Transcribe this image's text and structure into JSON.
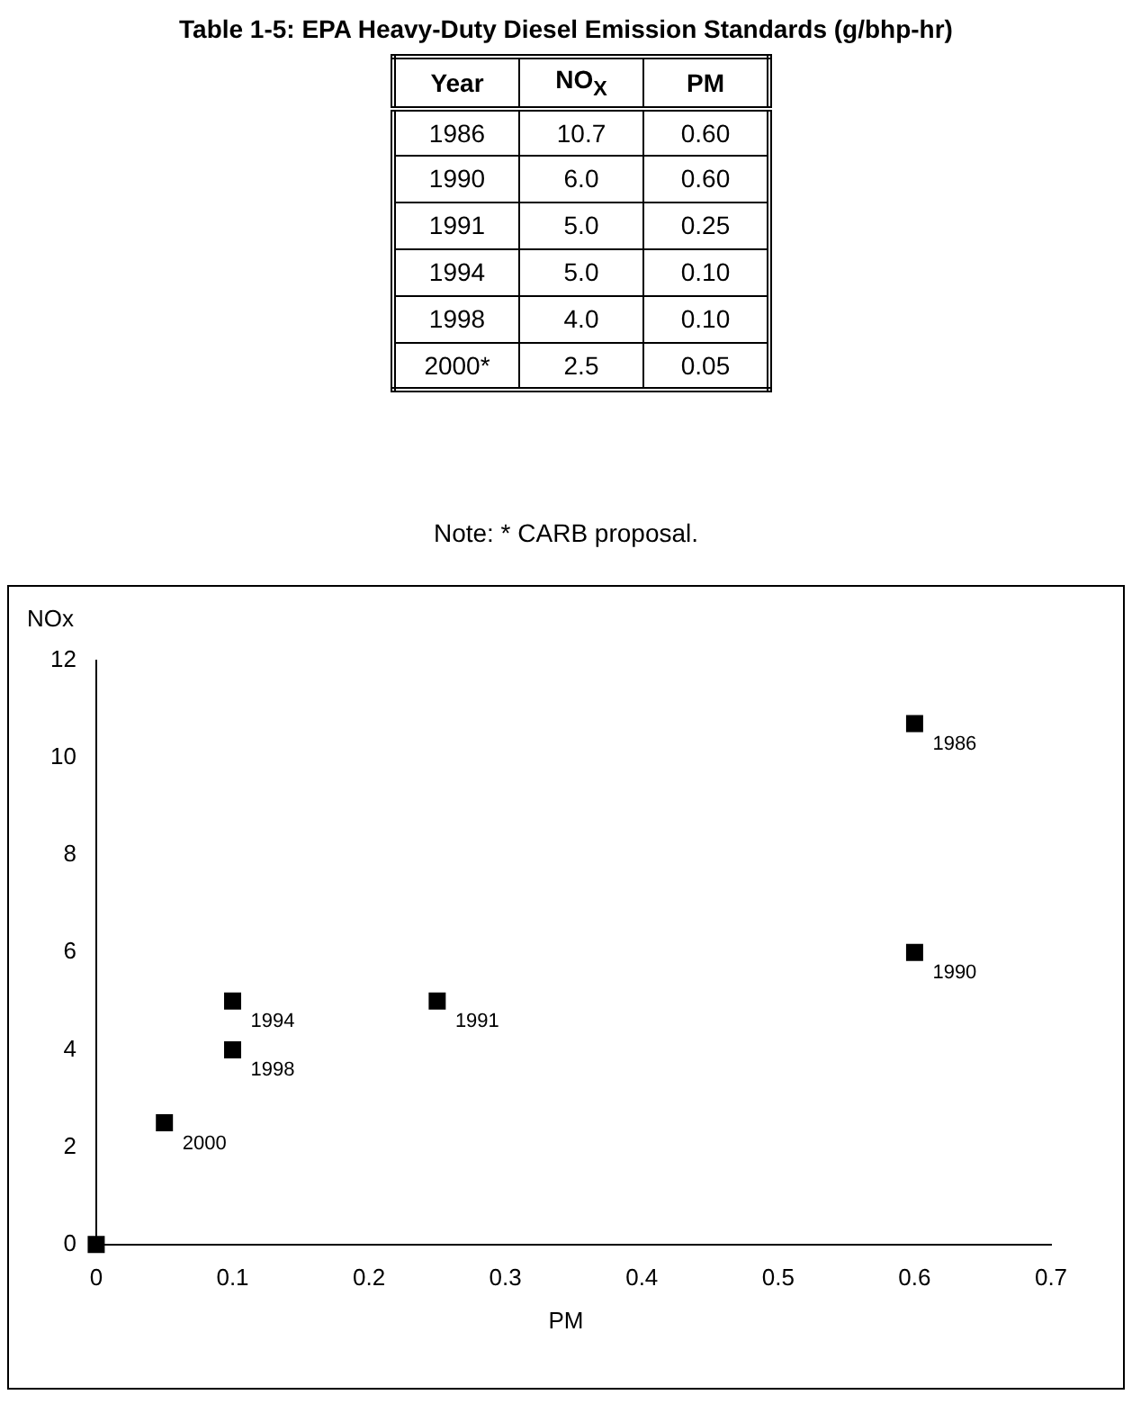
{
  "chart_data": {
    "type": "scatter",
    "title": "Table 1-5:  EPA Heavy-Duty Diesel Emission Standards (g/bhp-hr)",
    "xlabel": "PM",
    "ylabel": "NOx",
    "annotations": [
      "Year",
      "NO$_{X}$",
      "PM",
      "1986",
      "10.7",
      "0.60",
      "1990",
      "6.0",
      "0.60",
      "1991",
      "5.0",
      "0.25",
      "1994",
      "5.0",
      "0.10",
      "1998",
      "4.0",
      "0.10",
      "2000*",
      "2.5",
      "0.05",
      "Note:  * CARB proposal.",
      {
        "text": "1986",
        "x": 0.6,
        "y": 10.7
      },
      {
        "text": "1990",
        "x": 0.6,
        "y": 6
      },
      {
        "text": "1991",
        "x": 0.25,
        "y": 5
      },
      {
        "text": "1994",
        "x": 0.1,
        "y": 5
      },
      {
        "text": "1998",
        "x": 0.1,
        "y": 4
      },
      {
        "text": "2000",
        "x": 0.05,
        "y": 2.5
      }
    ],
    "x": [
      0.6,
      0.6,
      0.25,
      0.1,
      0.1,
      0.05,
      0
    ],
    "values": [
      10.7,
      6,
      5,
      5,
      4,
      2.5,
      0
    ],
    "color": "#000000",
    "marker": "square",
    "xlim": [
      0,
      0.7
    ],
    "xticks": [
      0,
      0.1,
      0.2,
      0.3,
      0.4,
      0.5,
      0.6,
      0.7
    ],
    "ylim": [
      0,
      12
    ],
    "yticks": [
      0,
      2,
      4,
      6,
      8,
      10,
      12
    ],
    "grid": false,
    "legend": false
  }
}
